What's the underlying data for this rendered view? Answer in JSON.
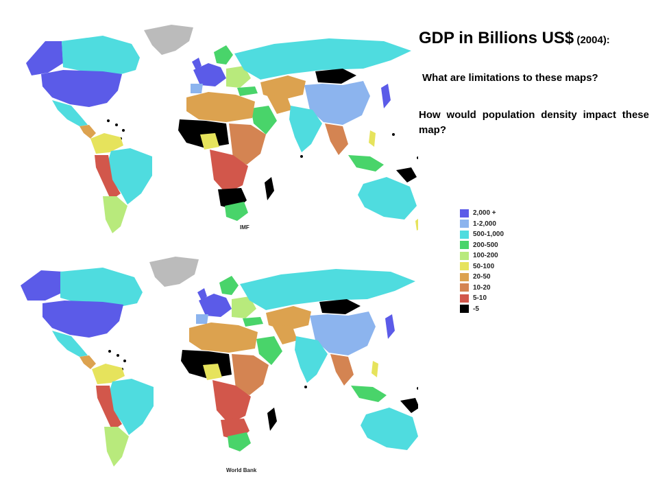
{
  "title": {
    "main": "GDP in Billions US$",
    "paren_open": " (",
    "year": "2004",
    "tail": "):"
  },
  "questions": {
    "q1": "What are limitations to these maps?",
    "q2": "How would population density impact these map?"
  },
  "maps": [
    {
      "label": "IMF"
    },
    {
      "label": "World Bank"
    }
  ],
  "legend": [
    {
      "label": "2,000 +",
      "color": "#5b5be8"
    },
    {
      "label": "1-2,000",
      "color": "#8cb4ee"
    },
    {
      "label": "500-1,000",
      "color": "#4fdcdf"
    },
    {
      "label": "200-500",
      "color": "#49d46a"
    },
    {
      "label": "100-200",
      "color": "#b8ea7c"
    },
    {
      "label": "50-100",
      "color": "#e6e35c"
    },
    {
      "label": "20-50",
      "color": "#dca24f"
    },
    {
      "label": "10-20",
      "color": "#d48452"
    },
    {
      "label": "5-10",
      "color": "#d2574b"
    },
    {
      "label": "-5",
      "color": "#000000"
    }
  ],
  "colors": {
    "no_data": "#bbbbbb"
  }
}
